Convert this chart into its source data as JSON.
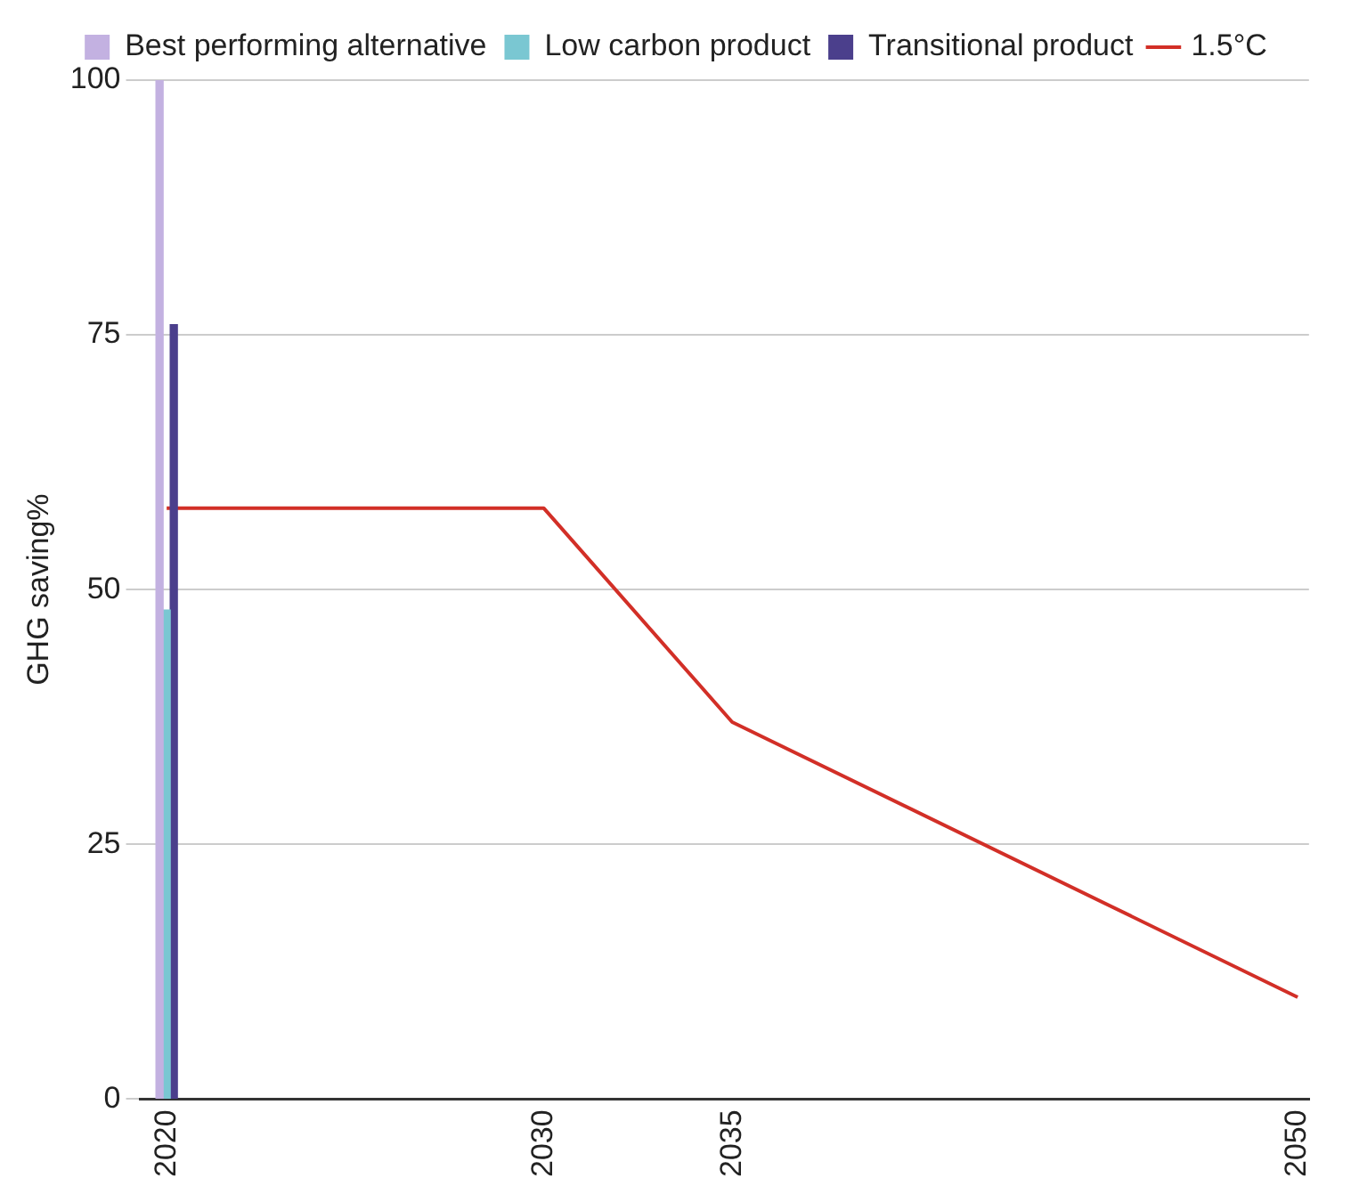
{
  "chart_data": {
    "type": "bar",
    "ylabel": "GHG saving%",
    "xlim": [
      2019.3,
      2050.3
    ],
    "xticks": [
      2020,
      2030,
      2035,
      2050
    ],
    "ylim": [
      0,
      100
    ],
    "yticks": [
      0,
      25,
      50,
      75,
      100
    ],
    "grid": "y",
    "legend": "top",
    "marker": "none",
    "line_style": "solid",
    "series": [
      {
        "name": "Best performing alternative",
        "color": "#c3b1e1",
        "x": [
          2020
        ],
        "values": [
          100
        ]
      },
      {
        "name": "Low carbon product",
        "color": "#7ac7d2",
        "x": [
          2020
        ],
        "values": [
          48
        ]
      },
      {
        "name": "Transitional product",
        "color": "#4b3f8c",
        "x": [
          2020
        ],
        "values": [
          76
        ]
      },
      {
        "name": "1.5°C",
        "type": "line",
        "color": "#d22f27",
        "x": [
          2020,
          2030,
          2035,
          2050
        ],
        "values": [
          58,
          58,
          37,
          10
        ]
      }
    ]
  }
}
